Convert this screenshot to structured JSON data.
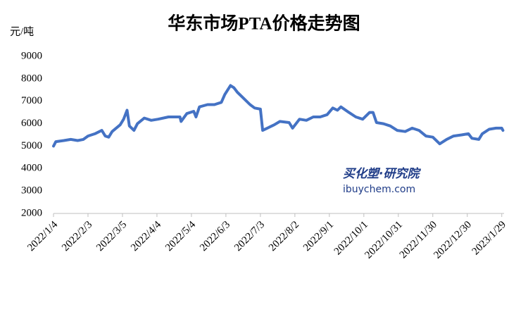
{
  "chart_data": {
    "type": "line",
    "title": "华东市场PTA价格走势图",
    "y_label": "元/吨",
    "annotations": [
      "买化塑·研究院",
      "ibuychem.com"
    ],
    "color": "#4472c4",
    "x": [
      "2022/1/4",
      "2022/1/6",
      "2022/1/13",
      "2022/1/19",
      "2022/1/25",
      "2022/1/30",
      "2022/2/3",
      "2022/2/9",
      "2022/2/15",
      "2022/2/18",
      "2022/2/21",
      "2022/2/24",
      "2022/3/3",
      "2022/3/6",
      "2022/3/9",
      "2022/3/11",
      "2022/3/15",
      "2022/3/18",
      "2022/3/24",
      "2022/3/30",
      "2022/4/5",
      "2022/4/14",
      "2022/4/24",
      "2022/4/25",
      "2022/4/30",
      "2022/5/6",
      "2022/5/8",
      "2022/5/11",
      "2022/5/18",
      "2022/5/24",
      "2022/5/30",
      "2022/6/2",
      "2022/6/7",
      "2022/6/10",
      "2022/6/13",
      "2022/6/18",
      "2022/6/24",
      "2022/6/28",
      "2022/7/3",
      "2022/7/5",
      "2022/7/9",
      "2022/7/15",
      "2022/7/20",
      "2022/7/28",
      "2022/7/31",
      "2022/8/6",
      "2022/8/12",
      "2022/8/18",
      "2022/8/24",
      "2022/8/30",
      "2022/9/4",
      "2022/9/8",
      "2022/9/11",
      "2022/9/18",
      "2022/9/24",
      "2022/9/30",
      "2022/10/6",
      "2022/10/9",
      "2022/10/12",
      "2022/10/18",
      "2022/10/24",
      "2022/10/30",
      "2022/11/6",
      "2022/11/12",
      "2022/11/18",
      "2022/11/24",
      "2022/11/30",
      "2022/12/6",
      "2022/12/12",
      "2022/12/18",
      "2022/12/25",
      "2022/12/31",
      "2023/1/3",
      "2023/1/9",
      "2023/1/12",
      "2023/1/18",
      "2023/1/24",
      "2023/1/29",
      "2023/1/30"
    ],
    "values": [
      5000,
      5200,
      5250,
      5300,
      5250,
      5300,
      5450,
      5550,
      5700,
      5450,
      5400,
      5650,
      5950,
      6200,
      6600,
      5900,
      5700,
      6000,
      6250,
      6150,
      6200,
      6300,
      6300,
      6100,
      6450,
      6550,
      6300,
      6750,
      6850,
      6850,
      6950,
      7300,
      7700,
      7600,
      7400,
      7150,
      6850,
      6700,
      6650,
      5700,
      5800,
      5950,
      6100,
      6050,
      5800,
      6200,
      6150,
      6300,
      6300,
      6400,
      6700,
      6600,
      6750,
      6500,
      6300,
      6200,
      6500,
      6500,
      6050,
      6000,
      5900,
      5700,
      5650,
      5800,
      5700,
      5450,
      5400,
      5100,
      5300,
      5450,
      5500,
      5550,
      5350,
      5300,
      5550,
      5750,
      5800,
      5800,
      5700
    ],
    "xlim": [
      "2022/1/4",
      "2023/1/31"
    ],
    "xticks": [
      "2022/1/4",
      "2022/2/3",
      "2022/3/5",
      "2022/4/4",
      "2022/5/4",
      "2022/6/3",
      "2022/7/3",
      "2022/8/2",
      "2022/9/1",
      "2022/10/1",
      "2022/10/31",
      "2022/11/30",
      "2022/12/30",
      "2023/1/29"
    ],
    "ylim": [
      2000,
      9000
    ],
    "yticks": [
      2000,
      3000,
      4000,
      5000,
      6000,
      7000,
      8000,
      9000
    ],
    "grid": false
  }
}
